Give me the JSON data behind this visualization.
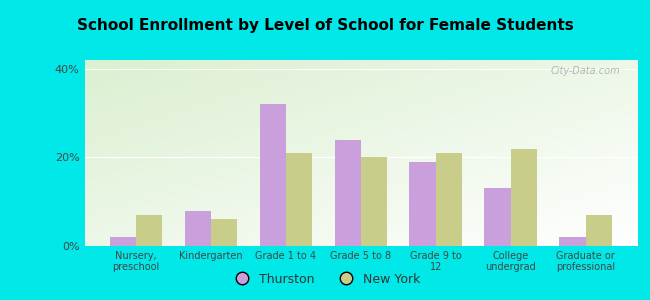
{
  "title": "School Enrollment by Level of School for Female Students",
  "categories": [
    "Nursery,\npreschool",
    "Kindergarten",
    "Grade 1 to 4",
    "Grade 5 to 8",
    "Grade 9 to\n12",
    "College\nundergrad",
    "Graduate or\nprofessional"
  ],
  "thurston": [
    2,
    8,
    32,
    24,
    19,
    13,
    2
  ],
  "new_york": [
    7,
    6,
    21,
    20,
    21,
    22,
    7
  ],
  "thurston_color": "#c9a0dc",
  "new_york_color": "#c8cd8a",
  "background_color": "#00e8e8",
  "ylim": [
    0,
    42
  ],
  "yticks": [
    0,
    20,
    40
  ],
  "ytick_labels": [
    "0%",
    "20%",
    "40%"
  ],
  "bar_width": 0.35,
  "legend_labels": [
    "Thurston",
    "New York"
  ],
  "watermark": "City-Data.com"
}
